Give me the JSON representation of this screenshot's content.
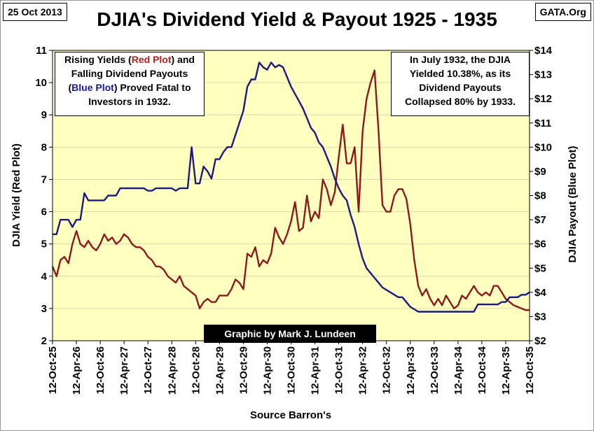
{
  "header": {
    "date": "25 Oct 2013",
    "source_tag": "GATA.Org",
    "title": "DJIA's Dividend Yield & Payout 1925 - 1935"
  },
  "notes": {
    "left_line1": "Rising Yields (Red Plot) and",
    "left_line2": "Falling Dividend Payouts",
    "left_line3": "(Blue Plot) Proved Fatal to",
    "left_line4": "Investors in 1932.",
    "right_line1": "In July 1932, the DJIA",
    "right_line2": "Yielded 10.38%, as its",
    "right_line3": "Dividend Payouts",
    "right_line4": "Collapsed 80% by 1933."
  },
  "credit": "Graphic by Mark J. Lundeen",
  "footer": "Source Barron's",
  "colors": {
    "yield": "#8b1a1a",
    "payout": "#1a1a80",
    "plot_bg": "#ffffc0",
    "marker": "#1a8c1a",
    "red_word": "#b22222",
    "blue_word": "#1a1a9c"
  },
  "chart_data": {
    "type": "line",
    "title": "DJIA's Dividend Yield & Payout 1925 - 1935",
    "xlabel": "Source Barron's",
    "ylabel_left": "DJIA Yield   (Red Plot)",
    "ylabel_right": "DJIA Payout   (Blue Plot)",
    "ylim_left": [
      2,
      11
    ],
    "ylim_right": [
      2,
      14
    ],
    "left_ticks": [
      "2",
      "3",
      "4",
      "5",
      "6",
      "7",
      "8",
      "9",
      "10",
      "11"
    ],
    "right_ticks": [
      "$2",
      "$3",
      "$4",
      "$5",
      "$6",
      "$7",
      "$8",
      "$9",
      "$10",
      "$11",
      "$12",
      "$13",
      "$14"
    ],
    "x_ticks": [
      "12-Oct-25",
      "12-Apr-26",
      "12-Oct-26",
      "12-Apr-27",
      "12-Oct-27",
      "12-Apr-28",
      "12-Oct-28",
      "12-Apr-29",
      "12-Oct-29",
      "12-Apr-30",
      "12-Oct-30",
      "12-Apr-31",
      "12-Oct-31",
      "12-Apr-32",
      "12-Oct-32",
      "12-Apr-33",
      "12-Oct-33",
      "12-Apr-34",
      "12-Oct-34",
      "12-Apr-35",
      "12-Oct-35"
    ],
    "marker_date": "Jul-1932",
    "series": [
      {
        "name": "Red Plot",
        "axis": "left",
        "x": [
          "Oct-25",
          "Nov-25",
          "Dec-25",
          "Jan-26",
          "Feb-26",
          "Mar-26",
          "Apr-26",
          "May-26",
          "Jun-26",
          "Jul-26",
          "Aug-26",
          "Sep-26",
          "Oct-26",
          "Nov-26",
          "Dec-26",
          "Jan-27",
          "Feb-27",
          "Mar-27",
          "Apr-27",
          "May-27",
          "Jun-27",
          "Jul-27",
          "Aug-27",
          "Sep-27",
          "Oct-27",
          "Nov-27",
          "Dec-27",
          "Jan-28",
          "Feb-28",
          "Mar-28",
          "Apr-28",
          "May-28",
          "Jun-28",
          "Jul-28",
          "Aug-28",
          "Sep-28",
          "Oct-28",
          "Nov-28",
          "Dec-28",
          "Jan-29",
          "Feb-29",
          "Mar-29",
          "Apr-29",
          "May-29",
          "Jun-29",
          "Jul-29",
          "Aug-29",
          "Sep-29",
          "Oct-29",
          "Nov-29",
          "Dec-29",
          "Jan-30",
          "Feb-30",
          "Mar-30",
          "Apr-30",
          "May-30",
          "Jun-30",
          "Jul-30",
          "Aug-30",
          "Sep-30",
          "Oct-30",
          "Nov-30",
          "Dec-30",
          "Jan-31",
          "Feb-31",
          "Mar-31",
          "Apr-31",
          "May-31",
          "Jun-31",
          "Jul-31",
          "Aug-31",
          "Sep-31",
          "Oct-31",
          "Nov-31",
          "Dec-31",
          "Jan-32",
          "Feb-32",
          "Mar-32",
          "Apr-32",
          "May-32",
          "Jun-32",
          "Jul-32",
          "Aug-32",
          "Sep-32",
          "Oct-32",
          "Nov-32",
          "Dec-32",
          "Jan-33",
          "Feb-33",
          "Mar-33",
          "Apr-33",
          "May-33",
          "Jun-33",
          "Jul-33",
          "Aug-33",
          "Sep-33",
          "Oct-33",
          "Nov-33",
          "Dec-33",
          "Jan-34",
          "Feb-34",
          "Mar-34",
          "Apr-34",
          "May-34",
          "Jun-34",
          "Jul-34",
          "Aug-34",
          "Sep-34",
          "Oct-34",
          "Nov-34",
          "Dec-34",
          "Jan-35",
          "Feb-35",
          "Mar-35",
          "Apr-35",
          "May-35",
          "Jun-35",
          "Jul-35",
          "Aug-35",
          "Sep-35",
          "Oct-35"
        ],
        "values": [
          4.3,
          4.0,
          4.5,
          4.6,
          4.4,
          5.0,
          5.4,
          5.0,
          4.9,
          5.1,
          4.9,
          4.8,
          5.0,
          5.3,
          5.1,
          5.2,
          5.0,
          5.1,
          5.3,
          5.2,
          5.0,
          4.9,
          4.9,
          4.8,
          4.6,
          4.5,
          4.3,
          4.3,
          4.2,
          4.0,
          3.9,
          3.8,
          4.0,
          3.7,
          3.6,
          3.5,
          3.4,
          3.0,
          3.2,
          3.3,
          3.2,
          3.2,
          3.4,
          3.4,
          3.4,
          3.6,
          3.9,
          3.8,
          3.6,
          4.7,
          4.6,
          4.9,
          4.3,
          4.5,
          4.4,
          4.7,
          5.5,
          5.2,
          5.0,
          5.3,
          5.7,
          6.3,
          5.4,
          5.5,
          6.5,
          5.7,
          6.0,
          5.8,
          7.0,
          6.7,
          6.2,
          6.6,
          7.7,
          8.7,
          7.5,
          7.5,
          8.0,
          6.0,
          8.5,
          9.5,
          10.0,
          10.38,
          8.5,
          6.2,
          6.0,
          6.0,
          6.5,
          6.7,
          6.7,
          6.4,
          5.6,
          4.5,
          3.7,
          3.4,
          3.6,
          3.3,
          3.1,
          3.3,
          3.1,
          3.4,
          3.2,
          3.0,
          3.1,
          3.4,
          3.3,
          3.5,
          3.7,
          3.5,
          3.4,
          3.5,
          3.4,
          3.7,
          3.7,
          3.5,
          3.3,
          3.2,
          3.1,
          3.05,
          3.0,
          2.95,
          2.95
        ]
      },
      {
        "name": "Blue Plot",
        "axis": "right",
        "x": [
          "Oct-25",
          "Nov-25",
          "Dec-25",
          "Jan-26",
          "Feb-26",
          "Mar-26",
          "Apr-26",
          "May-26",
          "Jun-26",
          "Jul-26",
          "Aug-26",
          "Sep-26",
          "Oct-26",
          "Nov-26",
          "Dec-26",
          "Jan-27",
          "Feb-27",
          "Mar-27",
          "Apr-27",
          "May-27",
          "Jun-27",
          "Jul-27",
          "Aug-27",
          "Sep-27",
          "Oct-27",
          "Nov-27",
          "Dec-27",
          "Jan-28",
          "Feb-28",
          "Mar-28",
          "Apr-28",
          "May-28",
          "Jun-28",
          "Jul-28",
          "Aug-28",
          "Sep-28",
          "Oct-28",
          "Nov-28",
          "Dec-28",
          "Jan-29",
          "Feb-29",
          "Mar-29",
          "Apr-29",
          "May-29",
          "Jun-29",
          "Jul-29",
          "Aug-29",
          "Sep-29",
          "Oct-29",
          "Nov-29",
          "Dec-29",
          "Jan-30",
          "Feb-30",
          "Mar-30",
          "Apr-30",
          "May-30",
          "Jun-30",
          "Jul-30",
          "Aug-30",
          "Sep-30",
          "Oct-30",
          "Nov-30",
          "Dec-30",
          "Jan-31",
          "Feb-31",
          "Mar-31",
          "Apr-31",
          "May-31",
          "Jun-31",
          "Jul-31",
          "Aug-31",
          "Sep-31",
          "Oct-31",
          "Nov-31",
          "Dec-31",
          "Jan-32",
          "Feb-32",
          "Mar-32",
          "Apr-32",
          "May-32",
          "Jun-32",
          "Jul-32",
          "Aug-32",
          "Sep-32",
          "Oct-32",
          "Nov-32",
          "Dec-32",
          "Jan-33",
          "Feb-33",
          "Mar-33",
          "Apr-33",
          "May-33",
          "Jun-33",
          "Jul-33",
          "Aug-33",
          "Sep-33",
          "Oct-33",
          "Nov-33",
          "Dec-33",
          "Jan-34",
          "Feb-34",
          "Mar-34",
          "Apr-34",
          "May-34",
          "Jun-34",
          "Jul-34",
          "Aug-34",
          "Sep-34",
          "Oct-34",
          "Nov-34",
          "Dec-34",
          "Jan-35",
          "Feb-35",
          "Mar-35",
          "Apr-35",
          "May-35",
          "Jun-35",
          "Jul-35",
          "Aug-35",
          "Sep-35",
          "Oct-35"
        ],
        "values": [
          6.4,
          6.4,
          7.0,
          7.0,
          7.0,
          6.7,
          7.0,
          7.0,
          8.1,
          7.8,
          7.8,
          7.8,
          7.8,
          7.8,
          8.0,
          8.0,
          8.0,
          8.3,
          8.3,
          8.3,
          8.3,
          8.3,
          8.3,
          8.3,
          8.2,
          8.2,
          8.3,
          8.3,
          8.3,
          8.3,
          8.3,
          8.2,
          8.3,
          8.3,
          8.3,
          10.0,
          8.5,
          8.5,
          9.2,
          9.0,
          8.7,
          9.5,
          9.5,
          9.8,
          10.0,
          10.0,
          10.5,
          11.0,
          11.5,
          12.5,
          12.8,
          12.8,
          13.5,
          13.3,
          13.2,
          13.5,
          13.3,
          13.4,
          13.3,
          12.9,
          12.5,
          12.2,
          11.9,
          11.6,
          11.2,
          10.8,
          10.6,
          10.2,
          10.0,
          9.6,
          9.2,
          8.7,
          8.3,
          8.0,
          7.8,
          7.2,
          6.7,
          6.0,
          5.4,
          5.0,
          4.8,
          4.6,
          4.4,
          4.2,
          4.1,
          4.0,
          3.9,
          3.8,
          3.8,
          3.6,
          3.4,
          3.3,
          3.2,
          3.2,
          3.2,
          3.2,
          3.2,
          3.2,
          3.2,
          3.2,
          3.2,
          3.2,
          3.2,
          3.2,
          3.2,
          3.2,
          3.2,
          3.5,
          3.5,
          3.5,
          3.5,
          3.5,
          3.5,
          3.6,
          3.6,
          3.8,
          3.8,
          3.8,
          3.9,
          3.9,
          4.0
        ]
      }
    ]
  }
}
